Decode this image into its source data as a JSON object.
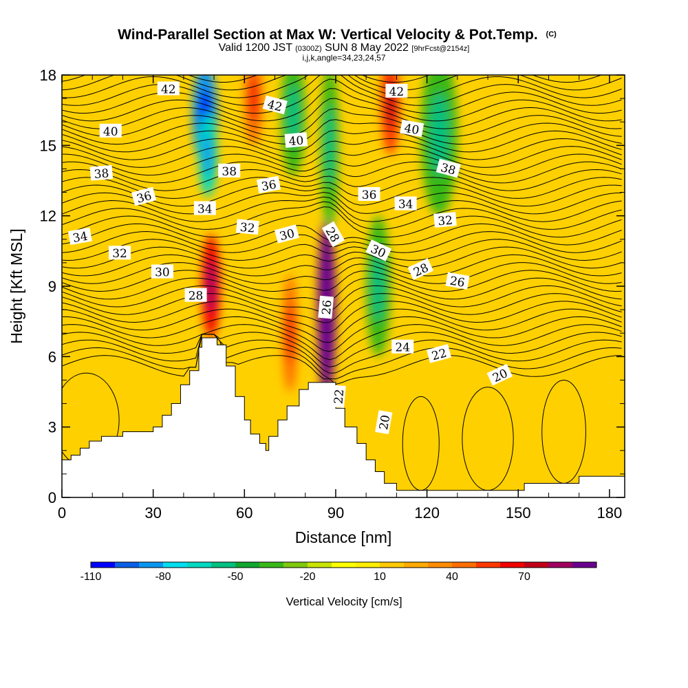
{
  "title": {
    "main": "Wind-Parallel Section at Max W: Vertical Velocity & Pot.Temp.",
    "main_suffix": "(C)",
    "valid_prefix": "Valid 1200 JST",
    "valid_zulu": "(0300Z)",
    "valid_date": "SUN 8 May 2022",
    "forecast": "[9hrFcst@2154z]",
    "indices": "i,j,k,angle=34,23,24,57"
  },
  "chart_data": {
    "type": "heatmap",
    "xlabel": "Distance [nm]",
    "ylabel": "Height [Kft MSL]",
    "xlim": [
      0,
      185
    ],
    "ylim": [
      0,
      18
    ],
    "x_ticks": [
      0,
      30,
      60,
      90,
      120,
      150,
      180
    ],
    "y_ticks": [
      0,
      3,
      6,
      9,
      12,
      15,
      18
    ],
    "colorbar": {
      "label": "Vertical Velocity [cm/s]",
      "tick_labels": [
        "-110",
        "-80",
        "-50",
        "-20",
        "10",
        "40",
        "70"
      ],
      "levels": [
        -110,
        -100,
        -90,
        -80,
        -70,
        -60,
        -50,
        -40,
        -30,
        -20,
        -10,
        0,
        10,
        20,
        30,
        40,
        50,
        60,
        70,
        80,
        90
      ],
      "colors": [
        "#0000ff",
        "#0a5fe6",
        "#0a96f0",
        "#00ddf0",
        "#00d8c0",
        "#00c080",
        "#10a830",
        "#38b818",
        "#80c810",
        "#c8e400",
        "#ffff00",
        "#ffee00",
        "#ffc800",
        "#ffaa00",
        "#ff8c00",
        "#ff6e00",
        "#ff3800",
        "#f00000",
        "#c00018",
        "#a00060",
        "#6a0090"
      ]
    },
    "terrain_height_kft": [
      {
        "x": 0,
        "h": 1.6
      },
      {
        "x": 3,
        "h": 1.8
      },
      {
        "x": 6,
        "h": 2.1
      },
      {
        "x": 9,
        "h": 2.4
      },
      {
        "x": 13,
        "h": 2.6
      },
      {
        "x": 16,
        "h": 2.6
      },
      {
        "x": 20,
        "h": 2.8
      },
      {
        "x": 23,
        "h": 2.8
      },
      {
        "x": 30,
        "h": 3.0
      },
      {
        "x": 33,
        "h": 3.5
      },
      {
        "x": 36,
        "h": 4.0
      },
      {
        "x": 39,
        "h": 4.8
      },
      {
        "x": 42,
        "h": 5.4
      },
      {
        "x": 45,
        "h": 6.4
      },
      {
        "x": 46,
        "h": 6.8
      },
      {
        "x": 51,
        "h": 6.5
      },
      {
        "x": 54,
        "h": 5.6
      },
      {
        "x": 57,
        "h": 4.3
      },
      {
        "x": 60,
        "h": 3.3
      },
      {
        "x": 62,
        "h": 2.7
      },
      {
        "x": 65,
        "h": 2.3
      },
      {
        "x": 67,
        "h": 2.0
      },
      {
        "x": 68,
        "h": 2.6
      },
      {
        "x": 71,
        "h": 3.3
      },
      {
        "x": 74,
        "h": 3.9
      },
      {
        "x": 78,
        "h": 4.6
      },
      {
        "x": 81,
        "h": 4.9
      },
      {
        "x": 87,
        "h": 4.9
      },
      {
        "x": 90,
        "h": 3.8
      },
      {
        "x": 93,
        "h": 3.0
      },
      {
        "x": 97,
        "h": 2.3
      },
      {
        "x": 100,
        "h": 1.6
      },
      {
        "x": 103,
        "h": 1.1
      },
      {
        "x": 106,
        "h": 0.6
      },
      {
        "x": 110,
        "h": 0.3
      },
      {
        "x": 140,
        "h": 0.3
      },
      {
        "x": 152,
        "h": 0.6
      },
      {
        "x": 170,
        "h": 0.9
      },
      {
        "x": 185,
        "h": 1.0
      }
    ],
    "contour_label_values": [
      "42",
      "42",
      "42",
      "40",
      "40",
      "40",
      "38",
      "38",
      "38",
      "36",
      "36",
      "36",
      "34",
      "34",
      "34",
      "32",
      "32",
      "32",
      "30",
      "30",
      "30",
      "28",
      "28",
      "28",
      "26",
      "26",
      "24",
      "22",
      "22",
      "20",
      "20"
    ],
    "velocity_cells": [
      {
        "x": 47,
        "y": 16.3,
        "rx": 4,
        "ry": 2.2,
        "v": -90
      },
      {
        "x": 48,
        "y": 14.6,
        "rx": 3,
        "ry": 1.8,
        "v": -70
      },
      {
        "x": 76,
        "y": 16.3,
        "rx": 4,
        "ry": 2.6,
        "v": -40
      },
      {
        "x": 88,
        "y": 15.0,
        "rx": 3,
        "ry": 3.5,
        "v": -40
      },
      {
        "x": 124,
        "y": 15.5,
        "rx": 6,
        "ry": 3.5,
        "v": -40
      },
      {
        "x": 104,
        "y": 9.0,
        "rx": 4,
        "ry": 3.0,
        "v": -40
      },
      {
        "x": 108,
        "y": 16.8,
        "rx": 3,
        "ry": 2.2,
        "v": 50
      },
      {
        "x": 87,
        "y": 8.0,
        "rx": 3,
        "ry": 3.8,
        "v": 90
      },
      {
        "x": 49,
        "y": 9.0,
        "rx": 3,
        "ry": 2.2,
        "v": 60
      },
      {
        "x": 75,
        "y": 7.0,
        "rx": 2.5,
        "ry": 2.5,
        "v": 40
      },
      {
        "x": 63,
        "y": 17.0,
        "rx": 3,
        "ry": 2.0,
        "v": 40
      }
    ]
  }
}
